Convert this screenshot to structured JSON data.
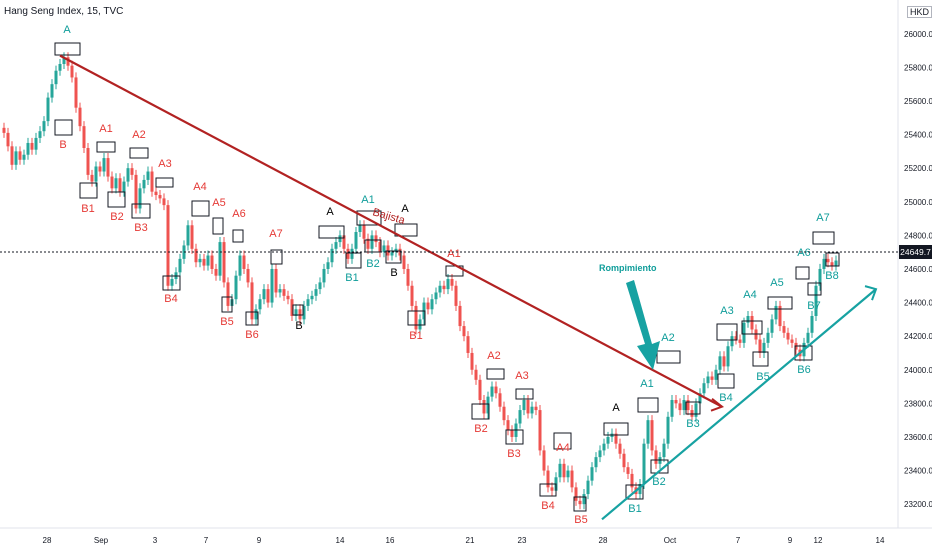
{
  "title": "Hang Seng Index, 15, TVC",
  "currency": "HKD",
  "last_price": "24649.7",
  "colors": {
    "up": "#26a69a",
    "down": "#ef5350",
    "trend_down": "#b22222",
    "trend_up": "#17a2a2",
    "label_red": "#e53935",
    "label_teal": "#0f9d9a",
    "label_black": "#000000",
    "arrow": "#17a2a2"
  },
  "annotations": {
    "bajista": "Bajista",
    "rompimiento": "Rompimiento"
  },
  "chart_data": {
    "type": "candlestick",
    "yaxis_ticks": [
      "26000.0",
      "25800.0",
      "25600.0",
      "25400.0",
      "25200.0",
      "25000.0",
      "24800.0",
      "24600.0",
      "24400.0",
      "24200.0",
      "24000.0",
      "23800.0",
      "23600.0",
      "23400.0",
      "23200.0"
    ],
    "xaxis_ticks": [
      "28",
      "Sep",
      "3",
      "7",
      "9",
      "14",
      "16",
      "21",
      "23",
      "28",
      "Oct",
      "7",
      "9",
      "12",
      "14"
    ],
    "ylim": [
      23070,
      26070
    ],
    "series_close_path": [
      [
        0,
        25440
      ],
      [
        4,
        25410
      ],
      [
        8,
        25330
      ],
      [
        12,
        25220
      ],
      [
        16,
        25300
      ],
      [
        20,
        25250
      ],
      [
        24,
        25280
      ],
      [
        28,
        25350
      ],
      [
        32,
        25310
      ],
      [
        36,
        25380
      ],
      [
        40,
        25420
      ],
      [
        44,
        25480
      ],
      [
        48,
        25620
      ],
      [
        52,
        25700
      ],
      [
        56,
        25780
      ],
      [
        60,
        25820
      ],
      [
        64,
        25860
      ],
      [
        68,
        25810
      ],
      [
        72,
        25740
      ],
      [
        76,
        25560
      ],
      [
        80,
        25450
      ],
      [
        84,
        25320
      ],
      [
        88,
        25160
      ],
      [
        92,
        25120
      ],
      [
        96,
        25210
      ],
      [
        100,
        25180
      ],
      [
        104,
        25260
      ],
      [
        108,
        25150
      ],
      [
        112,
        25080
      ],
      [
        116,
        25140
      ],
      [
        120,
        25060
      ],
      [
        124,
        25120
      ],
      [
        128,
        25200
      ],
      [
        132,
        25160
      ],
      [
        136,
        24960
      ],
      [
        140,
        25080
      ],
      [
        144,
        25130
      ],
      [
        148,
        25180
      ],
      [
        152,
        25060
      ],
      [
        156,
        25040
      ],
      [
        160,
        25020
      ],
      [
        164,
        24980
      ],
      [
        168,
        24500
      ],
      [
        172,
        24540
      ],
      [
        176,
        24580
      ],
      [
        180,
        24660
      ],
      [
        184,
        24740
      ],
      [
        188,
        24860
      ],
      [
        192,
        24720
      ],
      [
        196,
        24640
      ],
      [
        200,
        24660
      ],
      [
        204,
        24620
      ],
      [
        208,
        24680
      ],
      [
        212,
        24600
      ],
      [
        216,
        24560
      ],
      [
        220,
        24760
      ],
      [
        224,
        24520
      ],
      [
        228,
        24380
      ],
      [
        232,
        24420
      ],
      [
        236,
        24560
      ],
      [
        240,
        24680
      ],
      [
        244,
        24600
      ],
      [
        248,
        24520
      ],
      [
        252,
        24300
      ],
      [
        256,
        24360
      ],
      [
        260,
        24420
      ],
      [
        264,
        24480
      ],
      [
        268,
        24400
      ],
      [
        272,
        24600
      ],
      [
        276,
        24460
      ],
      [
        280,
        24480
      ],
      [
        284,
        24440
      ],
      [
        288,
        24420
      ],
      [
        292,
        24320
      ],
      [
        296,
        24360
      ],
      [
        300,
        24300
      ],
      [
        304,
        24380
      ],
      [
        308,
        24420
      ],
      [
        312,
        24440
      ],
      [
        316,
        24480
      ],
      [
        320,
        24520
      ],
      [
        324,
        24600
      ],
      [
        328,
        24640
      ],
      [
        332,
        24720
      ],
      [
        336,
        24760
      ],
      [
        340,
        24800
      ],
      [
        344,
        24720
      ],
      [
        348,
        24660
      ],
      [
        352,
        24720
      ],
      [
        356,
        24820
      ],
      [
        360,
        24860
      ],
      [
        364,
        24780
      ],
      [
        368,
        24720
      ],
      [
        372,
        24800
      ],
      [
        376,
        24760
      ],
      [
        380,
        24700
      ],
      [
        384,
        24740
      ],
      [
        388,
        24680
      ],
      [
        392,
        24700
      ],
      [
        396,
        24720
      ],
      [
        400,
        24680
      ],
      [
        404,
        24600
      ],
      [
        408,
        24500
      ],
      [
        412,
        24380
      ],
      [
        416,
        24240
      ],
      [
        420,
        24300
      ],
      [
        424,
        24400
      ],
      [
        428,
        24360
      ],
      [
        432,
        24420
      ],
      [
        436,
        24460
      ],
      [
        440,
        24500
      ],
      [
        444,
        24480
      ],
      [
        448,
        24540
      ],
      [
        452,
        24500
      ],
      [
        456,
        24380
      ],
      [
        460,
        24260
      ],
      [
        464,
        24200
      ],
      [
        468,
        24100
      ],
      [
        472,
        24000
      ],
      [
        476,
        23940
      ],
      [
        480,
        23820
      ],
      [
        484,
        23740
      ],
      [
        488,
        23840
      ],
      [
        492,
        23900
      ],
      [
        496,
        23860
      ],
      [
        500,
        23780
      ],
      [
        504,
        23700
      ],
      [
        508,
        23640
      ],
      [
        512,
        23600
      ],
      [
        516,
        23680
      ],
      [
        520,
        23760
      ],
      [
        524,
        23820
      ],
      [
        528,
        23740
      ],
      [
        532,
        23780
      ],
      [
        536,
        23760
      ],
      [
        540,
        23520
      ],
      [
        544,
        23400
      ],
      [
        548,
        23300
      ],
      [
        552,
        23280
      ],
      [
        556,
        23360
      ],
      [
        560,
        23440
      ],
      [
        564,
        23360
      ],
      [
        568,
        23400
      ],
      [
        572,
        23300
      ],
      [
        576,
        23220
      ],
      [
        580,
        23200
      ],
      [
        584,
        23260
      ],
      [
        588,
        23340
      ],
      [
        592,
        23420
      ],
      [
        596,
        23480
      ],
      [
        600,
        23520
      ],
      [
        604,
        23560
      ],
      [
        608,
        23600
      ],
      [
        612,
        23620
      ],
      [
        616,
        23560
      ],
      [
        620,
        23500
      ],
      [
        624,
        23420
      ],
      [
        628,
        23380
      ],
      [
        632,
        23300
      ],
      [
        636,
        23260
      ],
      [
        640,
        23320
      ],
      [
        644,
        23560
      ],
      [
        648,
        23700
      ],
      [
        652,
        23520
      ],
      [
        656,
        23440
      ],
      [
        660,
        23480
      ],
      [
        664,
        23560
      ],
      [
        668,
        23720
      ],
      [
        672,
        23820
      ],
      [
        676,
        23800
      ],
      [
        680,
        23760
      ],
      [
        684,
        23820
      ],
      [
        688,
        23760
      ],
      [
        692,
        23720
      ],
      [
        696,
        23800
      ],
      [
        700,
        23860
      ],
      [
        704,
        23920
      ],
      [
        708,
        23960
      ],
      [
        712,
        23940
      ],
      [
        716,
        24000
      ],
      [
        720,
        24080
      ],
      [
        724,
        24020
      ],
      [
        728,
        24140
      ],
      [
        732,
        24200
      ],
      [
        736,
        24180
      ],
      [
        740,
        24160
      ],
      [
        744,
        24280
      ],
      [
        748,
        24320
      ],
      [
        752,
        24240
      ],
      [
        756,
        24180
      ],
      [
        760,
        24100
      ],
      [
        764,
        24160
      ],
      [
        768,
        24220
      ],
      [
        772,
        24300
      ],
      [
        776,
        24380
      ],
      [
        780,
        24260
      ],
      [
        784,
        24220
      ],
      [
        788,
        24180
      ],
      [
        792,
        24160
      ],
      [
        796,
        24120
      ],
      [
        800,
        24080
      ],
      [
        804,
        24160
      ],
      [
        808,
        24220
      ],
      [
        812,
        24320
      ],
      [
        816,
        24500
      ],
      [
        820,
        24600
      ],
      [
        824,
        24660
      ],
      [
        828,
        24640
      ],
      [
        832,
        24620
      ],
      [
        836,
        24650
      ]
    ],
    "trendlines": [
      {
        "name": "bajista",
        "from": [
          60,
          25870
        ],
        "to": [
          722,
          23780
        ]
      },
      {
        "name": "alcista",
        "from": [
          602,
          23110
        ],
        "to": [
          876,
          24480
        ]
      }
    ],
    "wave_labels": [
      {
        "t": "A",
        "x": 67,
        "y": 33,
        "c": "label_teal"
      },
      {
        "t": "B",
        "x": 63,
        "y": 148,
        "c": "label_red"
      },
      {
        "t": "A1",
        "x": 106,
        "y": 132,
        "c": "label_red"
      },
      {
        "t": "B1",
        "x": 88,
        "y": 212,
        "c": "label_red"
      },
      {
        "t": "A2",
        "x": 139,
        "y": 138,
        "c": "label_red"
      },
      {
        "t": "B2",
        "x": 117,
        "y": 220,
        "c": "label_red"
      },
      {
        "t": "A3",
        "x": 165,
        "y": 167,
        "c": "label_red"
      },
      {
        "t": "B3",
        "x": 141,
        "y": 231,
        "c": "label_red"
      },
      {
        "t": "A4",
        "x": 200,
        "y": 190,
        "c": "label_red"
      },
      {
        "t": "B4",
        "x": 171,
        "y": 302,
        "c": "label_red"
      },
      {
        "t": "A5",
        "x": 219,
        "y": 206,
        "c": "label_red"
      },
      {
        "t": "B5",
        "x": 227,
        "y": 325,
        "c": "label_red"
      },
      {
        "t": "A6",
        "x": 239,
        "y": 217,
        "c": "label_red"
      },
      {
        "t": "B6",
        "x": 252,
        "y": 338,
        "c": "label_red"
      },
      {
        "t": "A7",
        "x": 276,
        "y": 237,
        "c": "label_red"
      },
      {
        "t": "B",
        "x": 299,
        "y": 329,
        "c": "label_black"
      },
      {
        "t": "A",
        "x": 330,
        "y": 215,
        "c": "label_black"
      },
      {
        "t": "B1",
        "x": 352,
        "y": 281,
        "c": "label_teal"
      },
      {
        "t": "A1",
        "x": 368,
        "y": 203,
        "c": "label_teal"
      },
      {
        "t": "B2",
        "x": 373,
        "y": 267,
        "c": "label_teal"
      },
      {
        "t": "B",
        "x": 394,
        "y": 276,
        "c": "label_black"
      },
      {
        "t": "A",
        "x": 405,
        "y": 212,
        "c": "label_black"
      },
      {
        "t": "A1",
        "x": 454,
        "y": 257,
        "c": "label_red"
      },
      {
        "t": "B1",
        "x": 416,
        "y": 339,
        "c": "label_red"
      },
      {
        "t": "A2",
        "x": 494,
        "y": 359,
        "c": "label_red"
      },
      {
        "t": "B2",
        "x": 481,
        "y": 432,
        "c": "label_red"
      },
      {
        "t": "A3",
        "x": 522,
        "y": 379,
        "c": "label_red"
      },
      {
        "t": "B3",
        "x": 514,
        "y": 457,
        "c": "label_red"
      },
      {
        "t": "A4",
        "x": 563,
        "y": 451,
        "c": "label_red"
      },
      {
        "t": "B4",
        "x": 548,
        "y": 509,
        "c": "label_red"
      },
      {
        "t": "B5",
        "x": 581,
        "y": 523,
        "c": "label_red"
      },
      {
        "t": "A",
        "x": 616,
        "y": 411,
        "c": "label_black"
      },
      {
        "t": "A1",
        "x": 647,
        "y": 387,
        "c": "label_teal"
      },
      {
        "t": "B1",
        "x": 635,
        "y": 512,
        "c": "label_teal"
      },
      {
        "t": "A2",
        "x": 668,
        "y": 341,
        "c": "label_teal"
      },
      {
        "t": "B2",
        "x": 659,
        "y": 485,
        "c": "label_teal"
      },
      {
        "t": "B3",
        "x": 693,
        "y": 427,
        "c": "label_teal"
      },
      {
        "t": "A3",
        "x": 727,
        "y": 314,
        "c": "label_teal"
      },
      {
        "t": "B4",
        "x": 726,
        "y": 401,
        "c": "label_teal"
      },
      {
        "t": "A4",
        "x": 750,
        "y": 298,
        "c": "label_teal"
      },
      {
        "t": "B5",
        "x": 763,
        "y": 380,
        "c": "label_teal"
      },
      {
        "t": "A5",
        "x": 777,
        "y": 286,
        "c": "label_teal"
      },
      {
        "t": "A6",
        "x": 804,
        "y": 256,
        "c": "label_teal"
      },
      {
        "t": "B6",
        "x": 804,
        "y": 373,
        "c": "label_teal"
      },
      {
        "t": "B7",
        "x": 814,
        "y": 309,
        "c": "label_teal"
      },
      {
        "t": "A7",
        "x": 823,
        "y": 221,
        "c": "label_teal"
      },
      {
        "t": "B8",
        "x": 832,
        "y": 279,
        "c": "label_teal"
      }
    ],
    "boxes": [
      [
        55,
        43,
        25,
        12
      ],
      [
        55,
        120,
        17,
        15
      ],
      [
        80,
        183,
        17,
        15
      ],
      [
        97,
        142,
        18,
        10
      ],
      [
        108,
        192,
        17,
        15
      ],
      [
        130,
        148,
        18,
        10
      ],
      [
        132,
        204,
        18,
        14
      ],
      [
        156,
        178,
        17,
        9
      ],
      [
        192,
        201,
        17,
        15
      ],
      [
        163,
        276,
        17,
        14
      ],
      [
        213,
        218,
        10,
        16
      ],
      [
        222,
        297,
        10,
        15
      ],
      [
        233,
        230,
        10,
        12
      ],
      [
        246,
        312,
        12,
        13
      ],
      [
        271,
        250,
        11,
        14
      ],
      [
        293,
        305,
        10,
        10
      ],
      [
        319,
        226,
        25,
        12
      ],
      [
        346,
        253,
        15,
        15
      ],
      [
        357,
        211,
        24,
        14
      ],
      [
        365,
        240,
        16,
        12
      ],
      [
        386,
        251,
        15,
        12
      ],
      [
        395,
        224,
        22,
        12
      ],
      [
        446,
        266,
        17,
        10
      ],
      [
        408,
        311,
        17,
        14
      ],
      [
        487,
        369,
        17,
        10
      ],
      [
        472,
        404,
        17,
        15
      ],
      [
        516,
        389,
        17,
        10
      ],
      [
        506,
        430,
        17,
        14
      ],
      [
        554,
        433,
        17,
        16
      ],
      [
        540,
        484,
        16,
        12
      ],
      [
        574,
        497,
        12,
        14
      ],
      [
        604,
        423,
        24,
        12
      ],
      [
        638,
        398,
        20,
        14
      ],
      [
        626,
        485,
        17,
        14
      ],
      [
        657,
        351,
        23,
        12
      ],
      [
        651,
        460,
        17,
        13
      ],
      [
        686,
        402,
        14,
        12
      ],
      [
        717,
        324,
        20,
        16
      ],
      [
        718,
        374,
        16,
        14
      ],
      [
        742,
        321,
        20,
        13
      ],
      [
        753,
        352,
        15,
        14
      ],
      [
        768,
        297,
        24,
        12
      ],
      [
        795,
        346,
        17,
        14
      ],
      [
        796,
        267,
        13,
        12
      ],
      [
        808,
        283,
        13,
        12
      ],
      [
        813,
        232,
        21,
        12
      ],
      [
        826,
        253,
        13,
        13
      ]
    ]
  }
}
